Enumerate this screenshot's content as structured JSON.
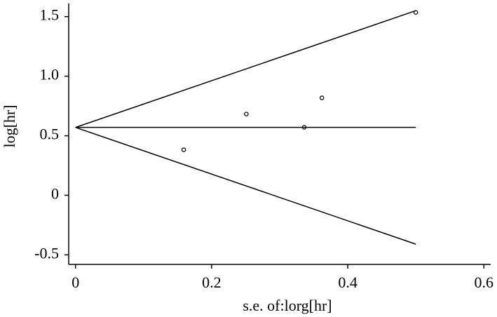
{
  "chart_data": {
    "type": "scatter",
    "xlabel": "s.e. of:lorg[hr]",
    "ylabel": "log[hr]",
    "x": [
      0.159,
      0.251,
      0.336,
      0.362,
      0.5
    ],
    "values": [
      0.382,
      0.682,
      0.571,
      0.818,
      1.535
    ],
    "lines": [
      {
        "x": [
          0,
          0.5
        ],
        "y": [
          0.57,
          0.57
        ]
      },
      {
        "x": [
          0,
          0.5
        ],
        "y": [
          0.57,
          1.55
        ]
      },
      {
        "x": [
          0,
          0.5
        ],
        "y": [
          0.57,
          -0.41
        ]
      }
    ],
    "color": "#000000",
    "xlim": [
      -0.01,
      0.61
    ],
    "ylim": [
      -0.58,
      1.61
    ],
    "xticks": [
      0,
      0.2,
      0.4,
      0.6
    ],
    "yticks": [
      {
        "value": 1.5,
        "label": "1.5"
      },
      {
        "value": 1,
        "label": "1.0"
      },
      0.5,
      0,
      -0.5
    ],
    "grid": false
  }
}
